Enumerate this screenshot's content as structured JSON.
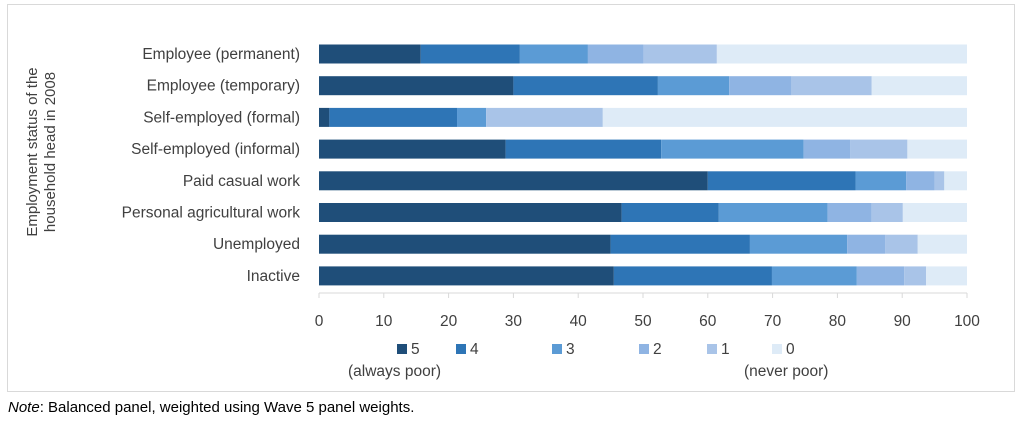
{
  "chart_data": {
    "type": "bar",
    "orientation": "horizontal",
    "stacked": true,
    "ylabel": "Employment status of the household head in 2008",
    "xlabel": "",
    "xlim": [
      0,
      100
    ],
    "xticks": [
      "0",
      "10",
      "20",
      "30",
      "40",
      "50",
      "60",
      "70",
      "80",
      "90",
      "100"
    ],
    "grid": false,
    "legend_position": "bottom",
    "categories": [
      "Employee (permanent)",
      "Employee (temporary)",
      "Self-employed (formal)",
      "Self-employed (informal)",
      "Paid casual work",
      "Personal agricultural work",
      "Unemployed",
      "Inactive"
    ],
    "series": [
      {
        "name": "5",
        "sublabel": "(always poor)",
        "color": "#1f4e79",
        "values": [
          15.7,
          30,
          1.6,
          28.8,
          60,
          46.7,
          45,
          45.5
        ]
      },
      {
        "name": "4",
        "color": "#2e75b6",
        "values": [
          15.3,
          22.3,
          19.7,
          24,
          22.8,
          15,
          21.5,
          24.4
        ]
      },
      {
        "name": "3",
        "color": "#5b9bd5",
        "values": [
          10.5,
          11,
          4.5,
          22,
          7.8,
          16.8,
          15,
          13.1
        ]
      },
      {
        "name": "2",
        "color": "#8fb4e3",
        "values": [
          8.6,
          9.6,
          0,
          7.2,
          4.4,
          6.8,
          5.9,
          7.3
        ]
      },
      {
        "name": "1",
        "color": "#a9c4e8",
        "values": [
          11.3,
          12.4,
          18,
          8.8,
          1.5,
          4.8,
          5,
          3.4
        ]
      },
      {
        "name": "0",
        "sublabel": "(never poor)",
        "color": "#deebf7",
        "values": [
          38.6,
          14.7,
          56.2,
          9.2,
          3.5,
          9.9,
          7.6,
          6.3
        ]
      }
    ]
  },
  "note": {
    "label": "Note",
    "text": ": Balanced panel, weighted using Wave 5 panel weights."
  }
}
